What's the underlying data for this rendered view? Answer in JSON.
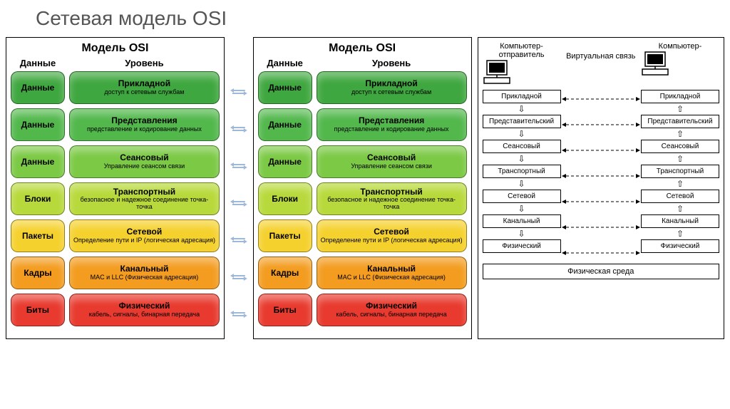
{
  "page_title": "Сетевая модель OSI",
  "panel_title": "Модель OSI",
  "col_headers": {
    "data": "Данные",
    "level": "Уровень"
  },
  "layers": [
    {
      "data": "Данные",
      "name": "Прикладной",
      "desc": "доступ к сетевым службам",
      "color": "#3fa73f"
    },
    {
      "data": "Данные",
      "name": "Представления",
      "desc": "представление и кодирование данных",
      "color": "#52b84c"
    },
    {
      "data": "Данные",
      "name": "Сеансовый",
      "desc": "Управление сеансом связи",
      "color": "#7bc944"
    },
    {
      "data": "Блоки",
      "name": "Транспортный",
      "desc": "безопасное и надежное соединение точка-точка",
      "color": "#b8d93b"
    },
    {
      "data": "Пакеты",
      "name": "Сетевой",
      "desc": "Определение пути и IP (логическая адресация)",
      "color": "#f5d12e"
    },
    {
      "data": "Кадры",
      "name": "Канальный",
      "desc": "MAC и LLC (Физическая адресация)",
      "color": "#f39c1f"
    },
    {
      "data": "Биты",
      "name": "Физический",
      "desc": "кабель, сигналы, бинарная передача",
      "color": "#e83a2e"
    }
  ],
  "connector_color": "#9db8d8",
  "right_panel": {
    "sender_label": "Компьютер-отправитель",
    "receiver_label": "Компьютер-",
    "virtual_label": "Виртуальная связь",
    "boxes": [
      "Прикладной",
      "Представительский",
      "Сеансовый",
      "Транспортный",
      "Сетевой",
      "Канальный",
      "Физический"
    ],
    "medium": "Физическая среда"
  }
}
